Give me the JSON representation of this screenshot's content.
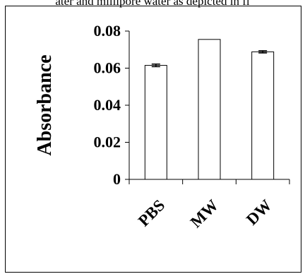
{
  "caption_fragment": "ater and millipore water as depicted in fi",
  "chart_data": {
    "type": "bar",
    "title": "",
    "xlabel": "",
    "ylabel": "Absorbance",
    "categories": [
      "PBS",
      "MW",
      "DW"
    ],
    "values": [
      0.0615,
      0.0755,
      0.0688
    ],
    "errors": [
      0.0007,
      0.0,
      0.0006
    ],
    "ylim": [
      0,
      0.08
    ],
    "yticks": [
      0,
      0.02,
      0.04,
      0.06,
      0.08
    ],
    "ytick_labels": [
      "0",
      "0.02",
      "0.04",
      "0.06",
      "0.08"
    ],
    "grid": false,
    "legend": "none",
    "bar_fill": "#ffffff",
    "bar_stroke": "#000000"
  }
}
